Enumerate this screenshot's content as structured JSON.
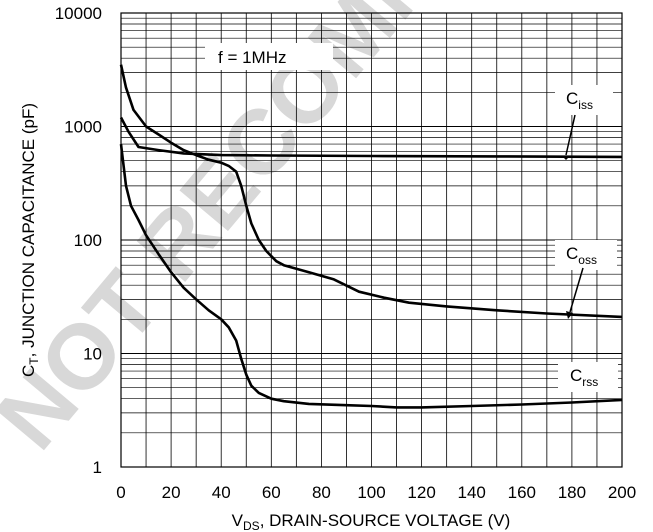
{
  "chart_data": {
    "type": "line",
    "xlabel": {
      "main": "V",
      "sub": "DS",
      "rest": ", DRAIN-SOURCE VOLTAGE (V)"
    },
    "ylabel": {
      "main": "C",
      "sub": "T",
      "rest": ", JUNCTION CAPACITANCE (pF)"
    },
    "xlim": [
      0,
      200
    ],
    "ylim": [
      1,
      10000
    ],
    "yscale": "log",
    "grid": true,
    "x_ticks": [
      "0",
      "20",
      "40",
      "60",
      "80",
      "100",
      "120",
      "140",
      "160",
      "180",
      "200"
    ],
    "y_ticks": [
      "1",
      "10",
      "100",
      "1000",
      "10000"
    ],
    "annotation": "f = 1MHz",
    "watermark": "NOT RECOMMENDED FOR NEW DESIGN",
    "series": [
      {
        "name": "Ciss",
        "label_main": "C",
        "label_sub": "iss",
        "points": [
          [
            0,
            1200
          ],
          [
            3,
            900
          ],
          [
            7,
            660
          ],
          [
            15,
            620
          ],
          [
            25,
            580
          ],
          [
            40,
            560
          ],
          [
            60,
            555
          ],
          [
            100,
            550
          ],
          [
            150,
            545
          ],
          [
            200,
            540
          ]
        ]
      },
      {
        "name": "Coss",
        "label_main": "C",
        "label_sub": "oss",
        "points": [
          [
            0,
            3500
          ],
          [
            2,
            2200
          ],
          [
            5,
            1400
          ],
          [
            10,
            1000
          ],
          [
            15,
            850
          ],
          [
            20,
            720
          ],
          [
            25,
            620
          ],
          [
            30,
            560
          ],
          [
            35,
            510
          ],
          [
            40,
            480
          ],
          [
            43,
            450
          ],
          [
            46,
            400
          ],
          [
            48,
            300
          ],
          [
            50,
            200
          ],
          [
            52,
            140
          ],
          [
            55,
            100
          ],
          [
            58,
            80
          ],
          [
            62,
            65
          ],
          [
            65,
            60
          ],
          [
            75,
            52
          ],
          [
            85,
            45
          ],
          [
            95,
            35
          ],
          [
            105,
            31
          ],
          [
            115,
            28
          ],
          [
            130,
            26
          ],
          [
            150,
            24
          ],
          [
            170,
            22.5
          ],
          [
            200,
            21
          ]
        ]
      },
      {
        "name": "Crss",
        "label_main": "C",
        "label_sub": "rss",
        "points": [
          [
            0,
            700
          ],
          [
            2,
            300
          ],
          [
            4,
            200
          ],
          [
            7,
            150
          ],
          [
            10,
            110
          ],
          [
            15,
            75
          ],
          [
            20,
            52
          ],
          [
            25,
            38
          ],
          [
            30,
            30
          ],
          [
            35,
            24
          ],
          [
            40,
            20
          ],
          [
            43,
            17
          ],
          [
            46,
            13
          ],
          [
            48,
            9
          ],
          [
            50,
            6.5
          ],
          [
            52,
            5.2
          ],
          [
            55,
            4.5
          ],
          [
            60,
            4.0
          ],
          [
            65,
            3.8
          ],
          [
            75,
            3.6
          ],
          [
            90,
            3.5
          ],
          [
            100,
            3.45
          ],
          [
            110,
            3.35
          ],
          [
            120,
            3.35
          ],
          [
            140,
            3.45
          ],
          [
            160,
            3.55
          ],
          [
            180,
            3.7
          ],
          [
            200,
            3.9
          ]
        ]
      }
    ]
  }
}
